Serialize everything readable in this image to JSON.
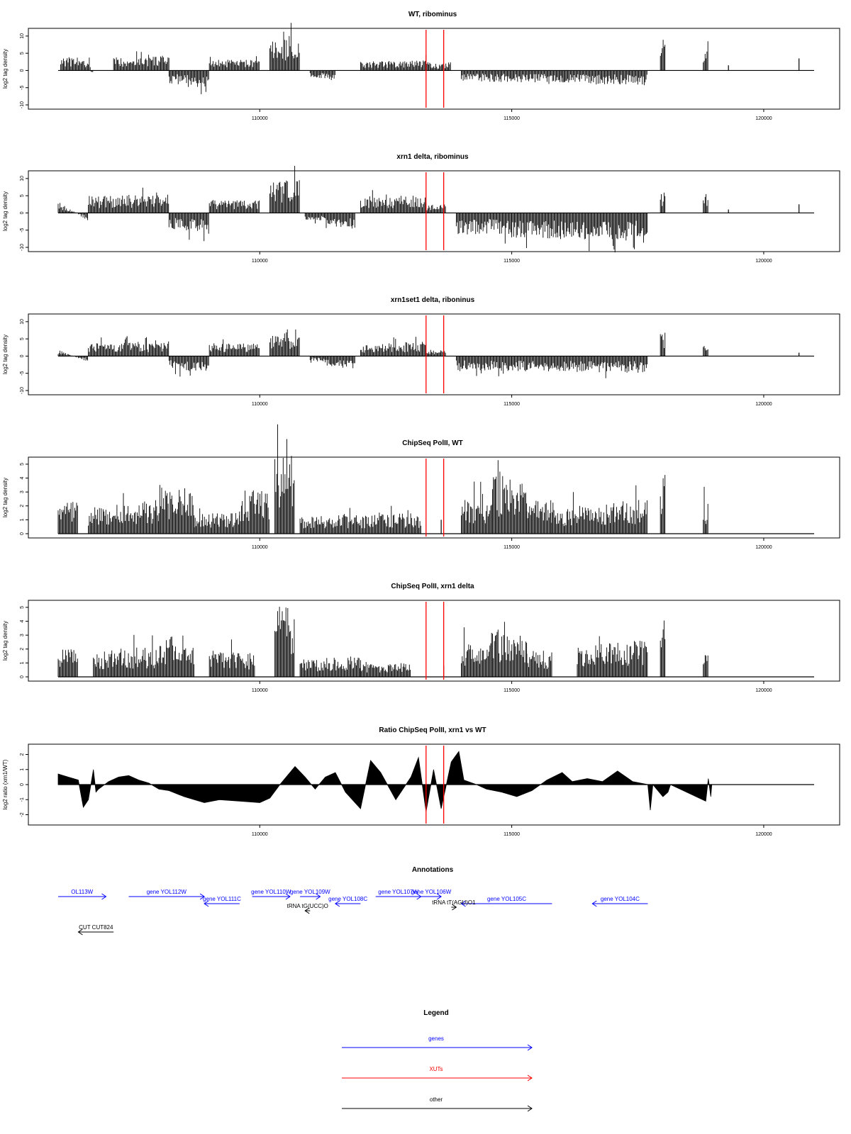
{
  "colors": {
    "gene": "#0000ff",
    "xut": "#ff0000",
    "other": "#000000",
    "marker": "#ff0000",
    "data": "#000000"
  },
  "chart_data": [
    {
      "type": "bar",
      "title": "WT, ribominus",
      "ylabel": "log2 tag density",
      "xlim": [
        106000,
        121000
      ],
      "ylim": [
        -10,
        11
      ],
      "yticks": [
        "-10",
        "-5",
        "0",
        "5",
        "10"
      ],
      "xticks": [
        "110000",
        "115000",
        "120000"
      ],
      "markers": [
        113300,
        113650
      ],
      "series": [
        {
          "x": [
            106050,
            106650
          ],
          "values": [
            3.5,
            2.0
          ]
        },
        {
          "x": [
            106650,
            106700
          ],
          "values": [
            -0.5,
            -0.5
          ]
        },
        {
          "x": [
            106700,
            107100
          ],
          "values": [
            0,
            0
          ]
        },
        {
          "x": [
            107100,
            108200
          ],
          "values": [
            3.0,
            3.5
          ]
        },
        {
          "x": [
            108200,
            109000
          ],
          "values": [
            -3.0,
            -4.0
          ]
        },
        {
          "x": [
            109000,
            110000
          ],
          "values": [
            2.5,
            2.5
          ]
        },
        {
          "x": [
            110200,
            110800
          ],
          "values": [
            7.0,
            8.0
          ]
        },
        {
          "x": [
            111000,
            111500
          ],
          "values": [
            -1.5,
            -2.5
          ]
        },
        {
          "x": [
            112000,
            113400
          ],
          "values": [
            2.0,
            2.5
          ]
        },
        {
          "x": [
            113400,
            113800
          ],
          "values": [
            1.0,
            2.0
          ]
        },
        {
          "x": [
            114000,
            116000
          ],
          "values": [
            -2.5,
            -3.0
          ]
        },
        {
          "x": [
            116000,
            117700
          ],
          "values": [
            -3.0,
            -3.5
          ]
        },
        {
          "x": [
            117950,
            118050
          ],
          "values": [
            7.0,
            8.0
          ]
        },
        {
          "x": [
            118800,
            118900
          ],
          "values": [
            5.0,
            5.0
          ]
        }
      ],
      "pulses": [
        [
          119300,
          1.5
        ],
        [
          120700,
          3.5
        ]
      ]
    },
    {
      "type": "bar",
      "title": "xrn1 delta, ribominus",
      "ylabel": "log2 tag density",
      "xlim": [
        106000,
        121000
      ],
      "ylim": [
        -10,
        11
      ],
      "yticks": [
        "-10",
        "-5",
        "0",
        "5",
        "10"
      ],
      "xticks": [
        "110000",
        "115000",
        "120000"
      ],
      "markers": [
        113300,
        113650
      ],
      "series": [
        {
          "x": [
            106000,
            106600
          ],
          "values": [
            3.0,
            -2.0
          ]
        },
        {
          "x": [
            106600,
            108200
          ],
          "values": [
            4.0,
            4.5
          ]
        },
        {
          "x": [
            108200,
            109000
          ],
          "values": [
            -4.0,
            -5.0
          ]
        },
        {
          "x": [
            109000,
            110000
          ],
          "values": [
            3.0,
            3.0
          ]
        },
        {
          "x": [
            110200,
            110800
          ],
          "values": [
            7.0,
            8.0
          ]
        },
        {
          "x": [
            110900,
            111300
          ],
          "values": [
            -2.0,
            -2.0
          ]
        },
        {
          "x": [
            111300,
            111900
          ],
          "values": [
            -3.0,
            -3.5
          ]
        },
        {
          "x": [
            112000,
            113300
          ],
          "values": [
            4.0,
            4.0
          ]
        },
        {
          "x": [
            113300,
            113700
          ],
          "values": [
            2.0,
            2.0
          ]
        },
        {
          "x": [
            113900,
            115000
          ],
          "values": [
            -5.0,
            -5.0
          ]
        },
        {
          "x": [
            115000,
            117700
          ],
          "values": [
            -6.0,
            -6.5
          ]
        },
        {
          "x": [
            117950,
            118050
          ],
          "values": [
            5.0,
            5.5
          ]
        },
        {
          "x": [
            118800,
            118900
          ],
          "values": [
            4.5,
            4.5
          ]
        }
      ],
      "pulses": [
        [
          119300,
          1.0
        ],
        [
          120700,
          2.5
        ]
      ]
    },
    {
      "type": "bar",
      "title": "xrn1set1 delta, riboninus",
      "ylabel": "log2 tag density",
      "xlim": [
        106000,
        121000
      ],
      "ylim": [
        -10,
        11
      ],
      "yticks": [
        "-10",
        "-5",
        "0",
        "5",
        "10"
      ],
      "xticks": [
        "110000",
        "115000",
        "120000"
      ],
      "markers": [
        113300,
        113650
      ],
      "series": [
        {
          "x": [
            106000,
            106600
          ],
          "values": [
            1.5,
            -1.5
          ]
        },
        {
          "x": [
            106600,
            108200
          ],
          "values": [
            3.0,
            3.5
          ]
        },
        {
          "x": [
            108200,
            109000
          ],
          "values": [
            -3.0,
            -4.0
          ]
        },
        {
          "x": [
            109000,
            110000
          ],
          "values": [
            3.0,
            3.0
          ]
        },
        {
          "x": [
            110200,
            110800
          ],
          "values": [
            5.0,
            6.0
          ]
        },
        {
          "x": [
            111000,
            111300
          ],
          "values": [
            -1.0,
            -1.5
          ]
        },
        {
          "x": [
            111300,
            111900
          ],
          "values": [
            -2.5,
            -3.0
          ]
        },
        {
          "x": [
            112000,
            113300
          ],
          "values": [
            2.5,
            3.5
          ]
        },
        {
          "x": [
            113300,
            113700
          ],
          "values": [
            1.5,
            1.5
          ]
        },
        {
          "x": [
            113900,
            115000
          ],
          "values": [
            -3.5,
            -3.5
          ]
        },
        {
          "x": [
            115000,
            117700
          ],
          "values": [
            -3.5,
            -4.0
          ]
        },
        {
          "x": [
            117950,
            118050
          ],
          "values": [
            6.0,
            6.5
          ]
        },
        {
          "x": [
            118800,
            118900
          ],
          "values": [
            3.0,
            3.0
          ]
        }
      ],
      "pulses": [
        [
          120700,
          1.0
        ]
      ]
    },
    {
      "type": "bar",
      "title": "ChipSeq PolII, WT",
      "ylabel": "log2 tag density",
      "xlim": [
        106000,
        121000
      ],
      "ylim": [
        0,
        5.2
      ],
      "yticks": [
        "0",
        "1",
        "2",
        "3",
        "4",
        "5"
      ],
      "xticks": [
        "110000",
        "115000",
        "120000"
      ],
      "markers": [
        113300,
        113650
      ],
      "series": [
        {
          "x": [
            106000,
            106400
          ],
          "values": [
            1.8,
            2.0
          ]
        },
        {
          "x": [
            106600,
            108000
          ],
          "values": [
            1.5,
            2.0
          ]
        },
        {
          "x": [
            108000,
            108700
          ],
          "values": [
            3.0,
            2.5
          ]
        },
        {
          "x": [
            108700,
            109600
          ],
          "values": [
            1.2,
            1.2
          ]
        },
        {
          "x": [
            109600,
            110200
          ],
          "values": [
            2.5,
            2.5
          ]
        },
        {
          "x": [
            110300,
            110700
          ],
          "values": [
            4.5,
            4.8
          ]
        },
        {
          "x": [
            110800,
            113200
          ],
          "values": [
            1.0,
            1.2
          ]
        },
        {
          "x": [
            114000,
            114600
          ],
          "values": [
            2.0,
            2.0
          ]
        },
        {
          "x": [
            114600,
            115300
          ],
          "values": [
            3.5,
            3.0
          ]
        },
        {
          "x": [
            115300,
            115800
          ],
          "values": [
            2.0,
            2.0
          ]
        },
        {
          "x": [
            115800,
            117700
          ],
          "values": [
            1.5,
            2.0
          ]
        },
        {
          "x": [
            117950,
            118050
          ],
          "values": [
            4.0,
            4.2
          ]
        },
        {
          "x": [
            118800,
            118900
          ],
          "values": [
            2.0,
            2.0
          ]
        }
      ],
      "pulses": [
        [
          113600,
          1.0
        ]
      ]
    },
    {
      "type": "bar",
      "title": "ChipSeq PolII, xrn1 delta",
      "ylabel": "log2 tag density",
      "xlim": [
        106000,
        121000
      ],
      "ylim": [
        0,
        5.2
      ],
      "yticks": [
        "0",
        "1",
        "2",
        "3",
        "4",
        "5"
      ],
      "xticks": [
        "110000",
        "115000",
        "120000"
      ],
      "markers": [
        113300,
        113650
      ],
      "series": [
        {
          "x": [
            106000,
            106400
          ],
          "values": [
            1.5,
            2.0
          ]
        },
        {
          "x": [
            106700,
            108000
          ],
          "values": [
            1.5,
            1.8
          ]
        },
        {
          "x": [
            108000,
            108700
          ],
          "values": [
            2.5,
            2.5
          ]
        },
        {
          "x": [
            109000,
            109900
          ],
          "values": [
            1.5,
            1.5
          ]
        },
        {
          "x": [
            110300,
            110700
          ],
          "values": [
            4.5,
            4.5
          ]
        },
        {
          "x": [
            110800,
            112000
          ],
          "values": [
            1.0,
            1.2
          ]
        },
        {
          "x": [
            112000,
            113000
          ],
          "values": [
            0.8,
            0.8
          ]
        },
        {
          "x": [
            114000,
            114600
          ],
          "values": [
            2.0,
            2.0
          ]
        },
        {
          "x": [
            114600,
            115300
          ],
          "values": [
            3.0,
            2.5
          ]
        },
        {
          "x": [
            115300,
            115800
          ],
          "values": [
            1.5,
            1.5
          ]
        },
        {
          "x": [
            116300,
            117700
          ],
          "values": [
            1.8,
            2.2
          ]
        },
        {
          "x": [
            117950,
            118050
          ],
          "values": [
            3.2,
            3.5
          ]
        },
        {
          "x": [
            118800,
            118900
          ],
          "values": [
            1.5,
            1.5
          ]
        }
      ],
      "pulses": [
        [
          113650,
          0.8
        ]
      ]
    },
    {
      "type": "area",
      "title": "Ratio ChipSeq PolII, xrn1 vs WT",
      "ylabel": "log2 ratio (xrn1/WT)",
      "xlim": [
        106000,
        121000
      ],
      "ylim": [
        -2.4,
        2.4
      ],
      "yticks": [
        "-2",
        "-1",
        "0",
        "1",
        "2"
      ],
      "xticks": [
        "110000",
        "115000",
        "120000"
      ],
      "markers": [
        113300,
        113650
      ],
      "points": [
        [
          106000,
          0.7
        ],
        [
          106200,
          0.5
        ],
        [
          106400,
          0.3
        ],
        [
          106500,
          -1.5
        ],
        [
          106600,
          -1.0
        ],
        [
          106700,
          1.0
        ],
        [
          106750,
          -0.5
        ],
        [
          106800,
          -0.3
        ],
        [
          107000,
          0.2
        ],
        [
          107200,
          0.5
        ],
        [
          107400,
          0.6
        ],
        [
          107600,
          0.3
        ],
        [
          107800,
          0.1
        ],
        [
          108000,
          -0.3
        ],
        [
          108200,
          -0.4
        ],
        [
          108500,
          -0.8
        ],
        [
          108900,
          -1.2
        ],
        [
          109200,
          -1.0
        ],
        [
          109600,
          -1.1
        ],
        [
          110000,
          -1.2
        ],
        [
          110200,
          -0.9
        ],
        [
          110400,
          0.0
        ],
        [
          110700,
          1.2
        ],
        [
          110900,
          0.5
        ],
        [
          111100,
          -0.3
        ],
        [
          111300,
          0.5
        ],
        [
          111500,
          0.8
        ],
        [
          111700,
          -0.5
        ],
        [
          112000,
          -1.6
        ],
        [
          112200,
          1.6
        ],
        [
          112400,
          0.8
        ],
        [
          112700,
          -1.0
        ],
        [
          113000,
          0.5
        ],
        [
          113150,
          1.8
        ],
        [
          113300,
          -1.8
        ],
        [
          113450,
          1.0
        ],
        [
          113600,
          -1.6
        ],
        [
          113800,
          1.5
        ],
        [
          113950,
          2.2
        ],
        [
          114050,
          0.3
        ],
        [
          114300,
          0.0
        ],
        [
          114500,
          -0.3
        ],
        [
          114800,
          -0.5
        ],
        [
          115100,
          -0.8
        ],
        [
          115400,
          -0.4
        ],
        [
          115700,
          0.3
        ],
        [
          116000,
          0.8
        ],
        [
          116200,
          0.2
        ],
        [
          116500,
          0.4
        ],
        [
          116800,
          0.2
        ],
        [
          117100,
          0.9
        ],
        [
          117400,
          0.2
        ],
        [
          117700,
          0.0
        ],
        [
          117750,
          -1.7
        ],
        [
          117800,
          0.0
        ],
        [
          118000,
          -0.8
        ],
        [
          118100,
          -0.5
        ],
        [
          118150,
          0.0
        ],
        [
          118850,
          -1.1
        ],
        [
          118900,
          0.4
        ],
        [
          118950,
          -0.8
        ],
        [
          118970,
          0.0
        ]
      ]
    }
  ],
  "annotations": {
    "title": "Annotations",
    "features": [
      {
        "label": "OL113W",
        "kind": "gene",
        "start": 106000,
        "end": 106950,
        "dir": "right",
        "row": 0
      },
      {
        "label": "gene YOL112W",
        "kind": "gene",
        "start": 107400,
        "end": 108900,
        "dir": "right",
        "row": 0
      },
      {
        "label": "gene YOL111C",
        "kind": "gene",
        "start": 108900,
        "end": 109600,
        "dir": "left",
        "row": 1
      },
      {
        "label": "gene YOL110W",
        "kind": "gene",
        "start": 109850,
        "end": 110600,
        "dir": "right",
        "row": 0
      },
      {
        "label": "gene YOL109W",
        "kind": "gene",
        "start": 110800,
        "end": 111200,
        "dir": "right",
        "row": 0
      },
      {
        "label": "gene YOL108C",
        "kind": "gene",
        "start": 111500,
        "end": 112000,
        "dir": "left",
        "row": 1
      },
      {
        "label": "gene YOL107W",
        "kind": "gene",
        "start": 112300,
        "end": 113200,
        "dir": "right",
        "row": 0
      },
      {
        "label": "gene YOL106W",
        "kind": "gene",
        "start": 113200,
        "end": 113600,
        "dir": "right",
        "row": 0
      },
      {
        "label": "gene YOL105C",
        "kind": "gene",
        "start": 114000,
        "end": 115800,
        "dir": "left",
        "row": 1
      },
      {
        "label": "gene YOL104C",
        "kind": "gene",
        "start": 116600,
        "end": 117700,
        "dir": "left",
        "row": 1
      },
      {
        "label": "tRNA tG(UCC)O",
        "kind": "other",
        "start": 110900,
        "end": 111000,
        "dir": "left",
        "row": 2
      },
      {
        "label": "tRNA tT(AGU)O1",
        "kind": "other",
        "start": 113800,
        "end": 113900,
        "dir": "right",
        "row": 1.5
      },
      {
        "label": "CUT CUT824",
        "kind": "other",
        "start": 106400,
        "end": 107100,
        "dir": "left",
        "row": 5
      }
    ]
  },
  "legend": {
    "title": "Legend",
    "items": [
      {
        "label": "genes",
        "kind": "gene"
      },
      {
        "label": "XUTs",
        "kind": "xut"
      },
      {
        "label": "other",
        "kind": "other"
      }
    ]
  }
}
